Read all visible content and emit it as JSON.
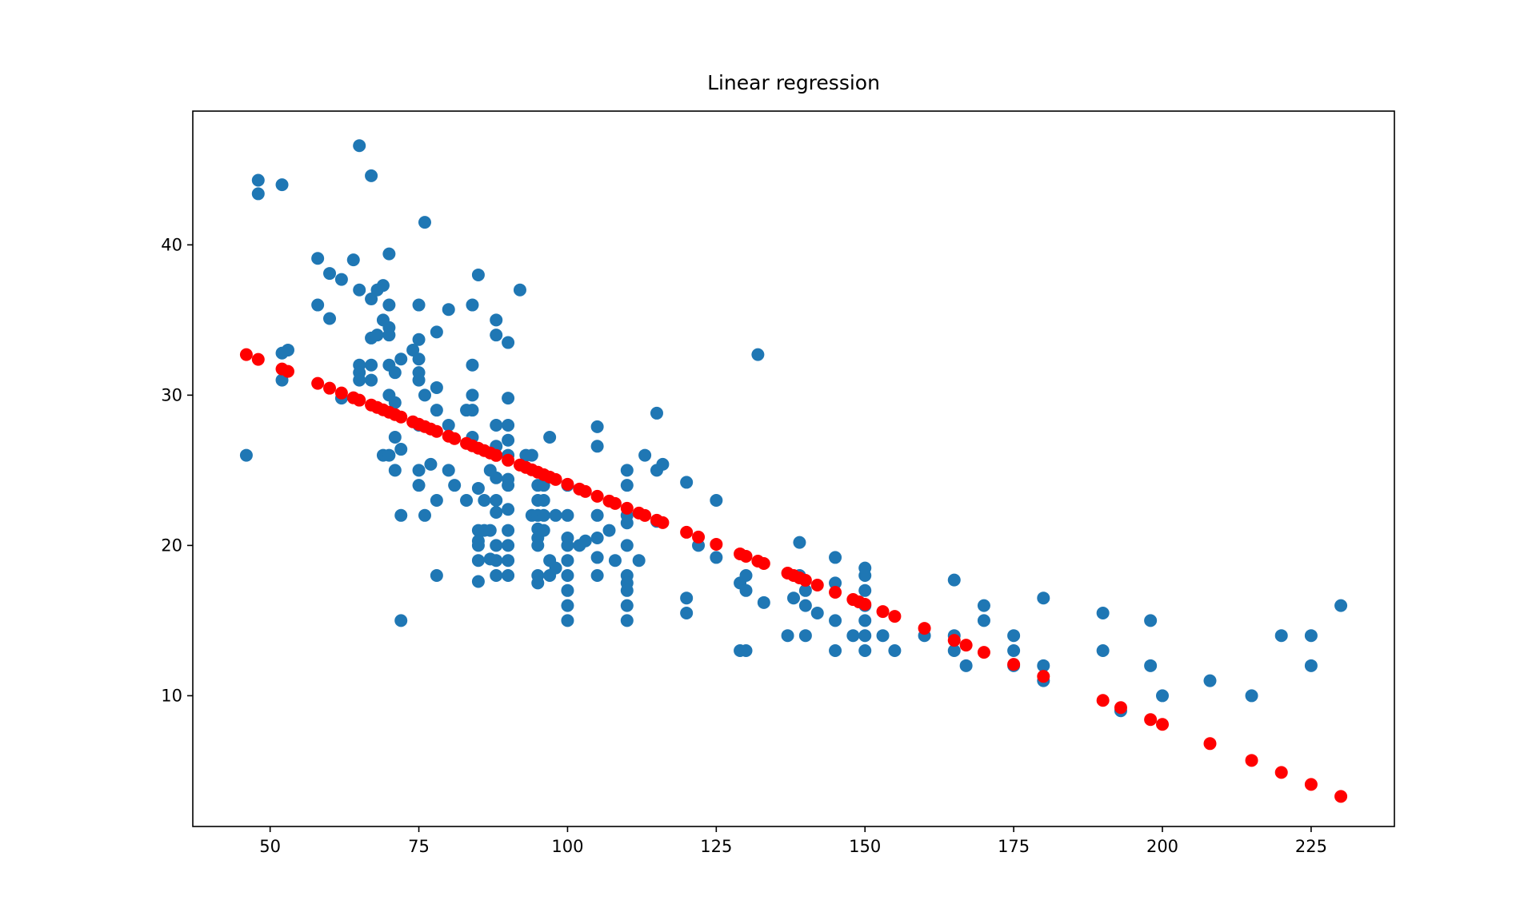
{
  "chart_data": {
    "type": "scatter",
    "title": "Linear regression",
    "xlabel": "",
    "ylabel": "",
    "xlim": [
      37,
      239
    ],
    "ylim": [
      1.3,
      48.9
    ],
    "x_ticks": [
      50,
      75,
      100,
      125,
      150,
      175,
      200,
      225
    ],
    "y_ticks": [
      10,
      20,
      30,
      40
    ],
    "grid": false,
    "legend": "none",
    "series": [
      {
        "color": "#1f77b4",
        "points": [
          [
            46,
            26
          ],
          [
            48,
            44.3
          ],
          [
            48,
            43.4
          ],
          [
            52,
            44
          ],
          [
            52,
            32.8
          ],
          [
            52,
            31
          ],
          [
            53,
            33
          ],
          [
            58,
            39.1
          ],
          [
            58,
            36
          ],
          [
            60,
            38.1
          ],
          [
            60,
            35.1
          ],
          [
            62,
            37.7
          ],
          [
            62,
            29.8
          ],
          [
            64,
            39
          ],
          [
            65,
            46.6
          ],
          [
            65,
            37
          ],
          [
            65,
            32
          ],
          [
            65,
            31.5
          ],
          [
            65,
            31
          ],
          [
            67,
            44.6
          ],
          [
            67,
            36.4
          ],
          [
            67,
            33.8
          ],
          [
            67,
            32
          ],
          [
            67,
            31
          ],
          [
            68,
            37
          ],
          [
            68,
            34
          ],
          [
            69,
            37.3
          ],
          [
            69,
            35
          ],
          [
            69,
            26
          ],
          [
            70,
            39.4
          ],
          [
            70,
            36
          ],
          [
            70,
            34.5
          ],
          [
            70,
            34
          ],
          [
            70,
            32
          ],
          [
            70,
            30
          ],
          [
            70,
            26
          ],
          [
            71,
            31.5
          ],
          [
            71,
            29.5
          ],
          [
            71,
            27.2
          ],
          [
            71,
            25
          ],
          [
            72,
            32.4
          ],
          [
            72,
            26.4
          ],
          [
            72,
            22
          ],
          [
            72,
            15
          ],
          [
            74,
            33
          ],
          [
            75,
            36
          ],
          [
            75,
            33.7
          ],
          [
            75,
            32.4
          ],
          [
            75,
            31.5
          ],
          [
            75,
            31
          ],
          [
            75,
            28
          ],
          [
            75,
            25
          ],
          [
            75,
            24
          ],
          [
            76,
            41.5
          ],
          [
            76,
            30
          ],
          [
            76,
            22
          ],
          [
            77,
            25.4
          ],
          [
            78,
            34.2
          ],
          [
            78,
            30.5
          ],
          [
            78,
            29
          ],
          [
            78,
            23
          ],
          [
            78,
            18
          ],
          [
            80,
            35.7
          ],
          [
            80,
            28
          ],
          [
            80,
            25
          ],
          [
            81,
            24
          ],
          [
            83,
            29
          ],
          [
            83,
            23
          ],
          [
            84,
            36
          ],
          [
            84,
            32
          ],
          [
            84,
            30
          ],
          [
            84,
            29
          ],
          [
            84,
            27.2
          ],
          [
            85,
            38
          ],
          [
            85,
            23.8
          ],
          [
            85,
            21
          ],
          [
            85,
            20.3
          ],
          [
            85,
            20
          ],
          [
            85,
            19
          ],
          [
            85,
            17.6
          ],
          [
            86,
            23
          ],
          [
            86,
            21
          ],
          [
            87,
            25
          ],
          [
            87,
            21
          ],
          [
            87,
            19.1
          ],
          [
            88,
            35
          ],
          [
            88,
            34
          ],
          [
            88,
            28
          ],
          [
            88,
            26.6
          ],
          [
            88,
            24.5
          ],
          [
            88,
            23
          ],
          [
            88,
            22.2
          ],
          [
            88,
            20
          ],
          [
            88,
            19
          ],
          [
            88,
            18
          ],
          [
            90,
            33.5
          ],
          [
            90,
            29.8
          ],
          [
            90,
            28
          ],
          [
            90,
            27
          ],
          [
            90,
            26
          ],
          [
            90,
            24.4
          ],
          [
            90,
            24
          ],
          [
            90,
            22.4
          ],
          [
            90,
            21
          ],
          [
            90,
            20
          ],
          [
            90,
            19
          ],
          [
            90,
            18
          ],
          [
            92,
            37
          ],
          [
            93,
            26
          ],
          [
            94,
            26
          ],
          [
            94,
            22
          ],
          [
            95,
            24
          ],
          [
            95,
            23
          ],
          [
            95,
            22
          ],
          [
            95,
            21.1
          ],
          [
            95,
            20.5
          ],
          [
            95,
            20
          ],
          [
            95,
            18
          ],
          [
            95,
            17.5
          ],
          [
            96,
            24
          ],
          [
            96,
            23
          ],
          [
            96,
            22
          ],
          [
            96,
            21
          ],
          [
            97,
            27.2
          ],
          [
            97,
            19
          ],
          [
            97,
            18
          ],
          [
            98,
            22
          ],
          [
            98,
            18.5
          ],
          [
            100,
            24
          ],
          [
            100,
            22
          ],
          [
            100,
            20.5
          ],
          [
            100,
            20
          ],
          [
            100,
            19
          ],
          [
            100,
            18
          ],
          [
            100,
            17
          ],
          [
            100,
            16
          ],
          [
            100,
            15
          ],
          [
            102,
            20
          ],
          [
            103,
            20.3
          ],
          [
            105,
            27.9
          ],
          [
            105,
            26.6
          ],
          [
            105,
            22
          ],
          [
            105,
            20.5
          ],
          [
            105,
            19.2
          ],
          [
            105,
            18
          ],
          [
            107,
            21
          ],
          [
            108,
            19
          ],
          [
            110,
            25
          ],
          [
            110,
            24
          ],
          [
            110,
            22
          ],
          [
            110,
            21.5
          ],
          [
            110,
            20
          ],
          [
            110,
            18
          ],
          [
            110,
            17.5
          ],
          [
            110,
            17
          ],
          [
            110,
            16
          ],
          [
            110,
            15
          ],
          [
            112,
            19
          ],
          [
            113,
            26
          ],
          [
            115,
            28.8
          ],
          [
            115,
            25
          ],
          [
            116,
            25.4
          ],
          [
            115,
            21.6
          ],
          [
            120,
            24.2
          ],
          [
            120,
            16.5
          ],
          [
            120,
            15.5
          ],
          [
            122,
            20
          ],
          [
            125,
            23
          ],
          [
            125,
            19.2
          ],
          [
            129,
            13
          ],
          [
            129,
            17.5
          ],
          [
            130,
            18
          ],
          [
            130,
            17
          ],
          [
            130,
            13
          ],
          [
            132,
            32.7
          ],
          [
            133,
            16.2
          ],
          [
            137,
            14
          ],
          [
            138,
            16.5
          ],
          [
            139,
            20.2
          ],
          [
            139,
            18
          ],
          [
            140,
            17
          ],
          [
            140,
            16
          ],
          [
            140,
            14
          ],
          [
            142,
            15.5
          ],
          [
            145,
            19.2
          ],
          [
            145,
            17.5
          ],
          [
            145,
            15
          ],
          [
            145,
            13
          ],
          [
            148,
            14
          ],
          [
            150,
            18.5
          ],
          [
            150,
            18
          ],
          [
            150,
            17
          ],
          [
            150,
            16
          ],
          [
            150,
            15
          ],
          [
            150,
            14
          ],
          [
            150,
            13
          ],
          [
            153,
            14
          ],
          [
            155,
            13
          ],
          [
            160,
            14
          ],
          [
            165,
            17.7
          ],
          [
            165,
            14
          ],
          [
            165,
            13
          ],
          [
            167,
            12
          ],
          [
            170,
            16
          ],
          [
            170,
            15
          ],
          [
            175,
            14
          ],
          [
            175,
            13
          ],
          [
            175,
            12
          ],
          [
            180,
            16.5
          ],
          [
            180,
            12
          ],
          [
            180,
            11
          ],
          [
            190,
            15.5
          ],
          [
            190,
            13
          ],
          [
            193,
            9
          ],
          [
            198,
            15
          ],
          [
            198,
            12
          ],
          [
            200,
            10
          ],
          [
            208,
            11
          ],
          [
            215,
            10
          ],
          [
            220,
            14
          ],
          [
            225,
            14
          ],
          [
            225,
            12
          ],
          [
            230,
            16
          ]
        ]
      },
      {
        "color": "#ff0000",
        "line_endpoints": [
          [
            46,
            32.7
          ],
          [
            230,
            3.3
          ]
        ],
        "x": [
          46,
          48,
          52,
          53,
          58,
          60,
          62,
          64,
          65,
          67,
          68,
          69,
          70,
          71,
          72,
          74,
          75,
          76,
          77,
          78,
          80,
          81,
          83,
          84,
          85,
          86,
          87,
          88,
          90,
          92,
          93,
          94,
          95,
          96,
          97,
          98,
          100,
          102,
          103,
          105,
          107,
          108,
          110,
          112,
          113,
          115,
          116,
          120,
          122,
          125,
          129,
          130,
          132,
          133,
          137,
          138,
          139,
          140,
          142,
          145,
          148,
          149,
          150,
          153,
          155,
          160,
          165,
          167,
          170,
          175,
          180,
          190,
          193,
          198,
          200,
          208,
          215,
          220,
          225,
          230
        ]
      }
    ]
  }
}
